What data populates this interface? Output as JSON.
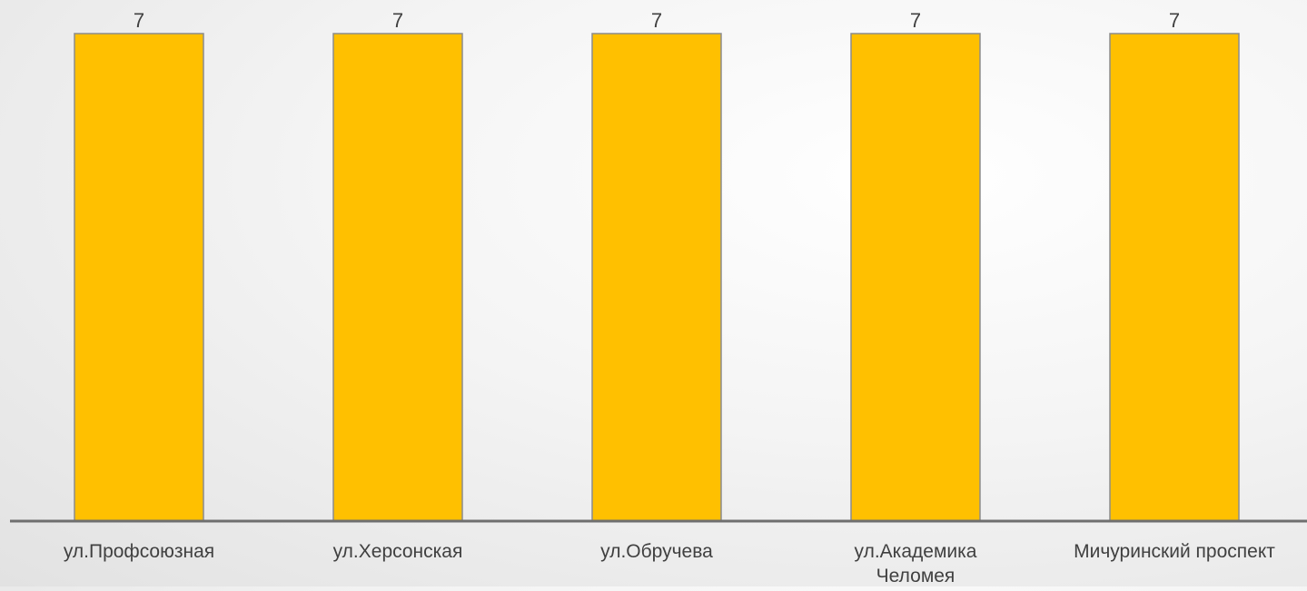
{
  "chart_data": {
    "type": "bar",
    "categories": [
      "ул.Профсоюзная",
      "ул.Херсонская",
      "ул.Обручева",
      "ул.Академика Челомея",
      "Мичуринский проспект"
    ],
    "values": [
      7,
      7,
      7,
      7,
      7
    ],
    "data_labels": [
      "7",
      "7",
      "7",
      "7",
      "7"
    ],
    "ylim": [
      0,
      7
    ],
    "grid": false,
    "legend": "none",
    "colors": {
      "bar_fill": "#FFC000",
      "bar_stroke": "#8C8C8C",
      "axis": "#6F6F6F",
      "text": "#404040"
    }
  }
}
